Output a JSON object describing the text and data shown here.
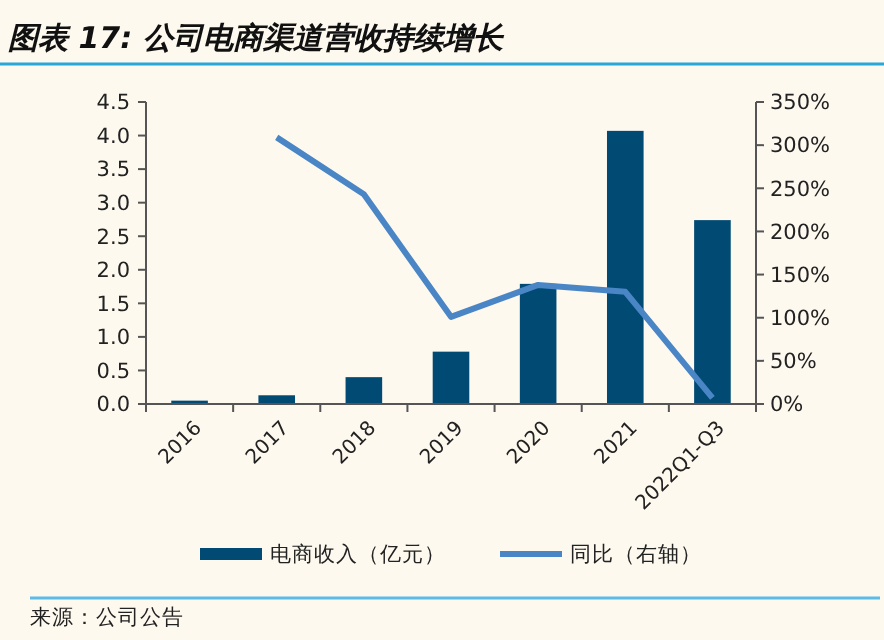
{
  "chart_data": {
    "type": "bar",
    "title": "图表 17: 公司电商渠道营收持续增长",
    "categories": [
      "2016",
      "2017",
      "2018",
      "2019",
      "2020",
      "2021",
      "2022Q1-Q3"
    ],
    "series": [
      {
        "name": "电商收入（亿元）",
        "color": "#004a73",
        "values": [
          0.05,
          0.13,
          0.4,
          0.78,
          1.79,
          4.07,
          2.74
        ]
      },
      {
        "name": "同比（右轴）",
        "type": "line",
        "axis": "y2",
        "color": "#4a86c6",
        "values": [
          null,
          309,
          243,
          101,
          138,
          130,
          7
        ]
      }
    ],
    "ylim": [
      0,
      4.5
    ],
    "yticks": [
      {
        "value": 0,
        "label": "0.0"
      },
      {
        "value": 0.5,
        "label": "0.5"
      },
      {
        "value": 1,
        "label": "1.0"
      },
      {
        "value": 1.5,
        "label": "1.5"
      },
      {
        "value": 2,
        "label": "2.0"
      },
      {
        "value": 2.5,
        "label": "2.5"
      },
      {
        "value": 3,
        "label": "3.0"
      },
      {
        "value": 3.5,
        "label": "3.5"
      },
      {
        "value": 4,
        "label": "4.0"
      },
      {
        "value": 4.5,
        "label": "4.5"
      }
    ],
    "y2lim": [
      0,
      350
    ],
    "y2ticks": [
      {
        "value": 0,
        "label": "0%"
      },
      {
        "value": 50,
        "label": "50%"
      },
      {
        "value": 100,
        "label": "100%"
      },
      {
        "value": 150,
        "label": "150%"
      },
      {
        "value": 200,
        "label": "200%"
      },
      {
        "value": 250,
        "label": "250%"
      },
      {
        "value": 300,
        "label": "300%"
      },
      {
        "value": 350,
        "label": "350%"
      }
    ],
    "legend": "bottom",
    "grid": false,
    "marker": "none",
    "line_style": "solid",
    "annotations": [
      "来源：公司公告"
    ]
  }
}
